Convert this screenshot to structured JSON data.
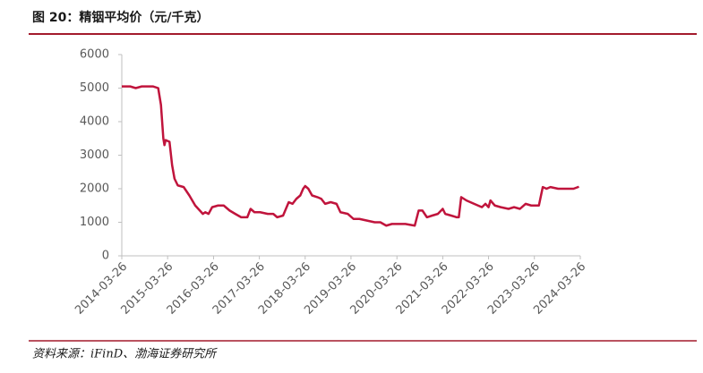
{
  "source": "资料来源：iFinD、渤海证券研究所",
  "chart_data": {
    "type": "line",
    "title": "图 20：精铟平均价（元/千克）",
    "x": [
      "2014-03-26",
      "2014-06-01",
      "2014-07-15",
      "2014-09-01",
      "2014-12-01",
      "2015-01-10",
      "2015-02-01",
      "2015-02-20",
      "2015-03-01",
      "2015-03-10",
      "2015-04-10",
      "2015-05-01",
      "2015-05-20",
      "2015-06-15",
      "2015-08-01",
      "2015-09-15",
      "2015-11-01",
      "2016-01-01",
      "2016-01-20",
      "2016-02-15",
      "2016-03-15",
      "2016-05-01",
      "2016-06-15",
      "2016-08-01",
      "2016-09-15",
      "2016-11-01",
      "2016-12-20",
      "2017-01-15",
      "2017-02-15",
      "2017-04-01",
      "2017-06-01",
      "2017-07-15",
      "2017-08-15",
      "2017-10-01",
      "2017-11-15",
      "2017-12-15",
      "2018-01-15",
      "2018-02-15",
      "2018-03-10",
      "2018-03-26",
      "2018-04-20",
      "2018-05-20",
      "2018-07-01",
      "2018-08-01",
      "2018-09-01",
      "2018-10-15",
      "2018-12-01",
      "2019-01-01",
      "2019-03-01",
      "2019-04-15",
      "2019-06-01",
      "2019-08-01",
      "2019-10-01",
      "2019-11-15",
      "2020-01-01",
      "2020-02-15",
      "2020-04-01",
      "2020-06-01",
      "2020-08-15",
      "2020-09-15",
      "2020-10-15",
      "2020-11-20",
      "2021-01-01",
      "2021-02-15",
      "2021-03-26",
      "2021-04-15",
      "2021-06-01",
      "2021-07-15",
      "2021-08-01",
      "2021-08-20",
      "2021-10-01",
      "2021-12-01",
      "2022-02-01",
      "2022-03-01",
      "2022-03-26",
      "2022-04-10",
      "2022-05-15",
      "2022-07-01",
      "2022-09-01",
      "2022-10-15",
      "2022-12-01",
      "2023-01-15",
      "2023-03-01",
      "2023-05-01",
      "2023-06-01",
      "2023-07-01",
      "2023-08-01",
      "2023-10-01",
      "2023-12-01",
      "2024-02-01",
      "2024-03-15"
    ],
    "series": [
      {
        "color": "#c0143c",
        "values": [
          5050,
          5050,
          5000,
          5050,
          5050,
          5000,
          4500,
          3500,
          3300,
          3450,
          3400,
          2700,
          2300,
          2100,
          2050,
          1800,
          1500,
          1250,
          1300,
          1250,
          1450,
          1500,
          1500,
          1350,
          1250,
          1150,
          1150,
          1400,
          1300,
          1300,
          1250,
          1250,
          1150,
          1200,
          1600,
          1550,
          1700,
          1800,
          2000,
          2080,
          2000,
          1800,
          1750,
          1700,
          1550,
          1600,
          1550,
          1300,
          1250,
          1100,
          1100,
          1050,
          1000,
          1000,
          900,
          950,
          950,
          950,
          900,
          1350,
          1350,
          1150,
          1200,
          1250,
          1400,
          1250,
          1200,
          1150,
          1150,
          1750,
          1650,
          1550,
          1450,
          1550,
          1450,
          1650,
          1500,
          1450,
          1400,
          1450,
          1400,
          1550,
          1500,
          1500,
          2050,
          2000,
          2050,
          2000,
          2000,
          2000,
          2060
        ]
      }
    ],
    "xlim": [
      "2014-03-26",
      "2024-03-26"
    ],
    "xticks": [
      "2014-03-26",
      "2015-03-26",
      "2016-03-26",
      "2017-03-26",
      "2018-03-26",
      "2019-03-26",
      "2020-03-26",
      "2021-03-26",
      "2022-03-26",
      "2023-03-26",
      "2024-03-26"
    ],
    "ylim": [
      0,
      6000
    ],
    "yticks": [
      0,
      1000,
      2000,
      3000,
      4000,
      5000,
      6000
    ],
    "grid": false
  }
}
